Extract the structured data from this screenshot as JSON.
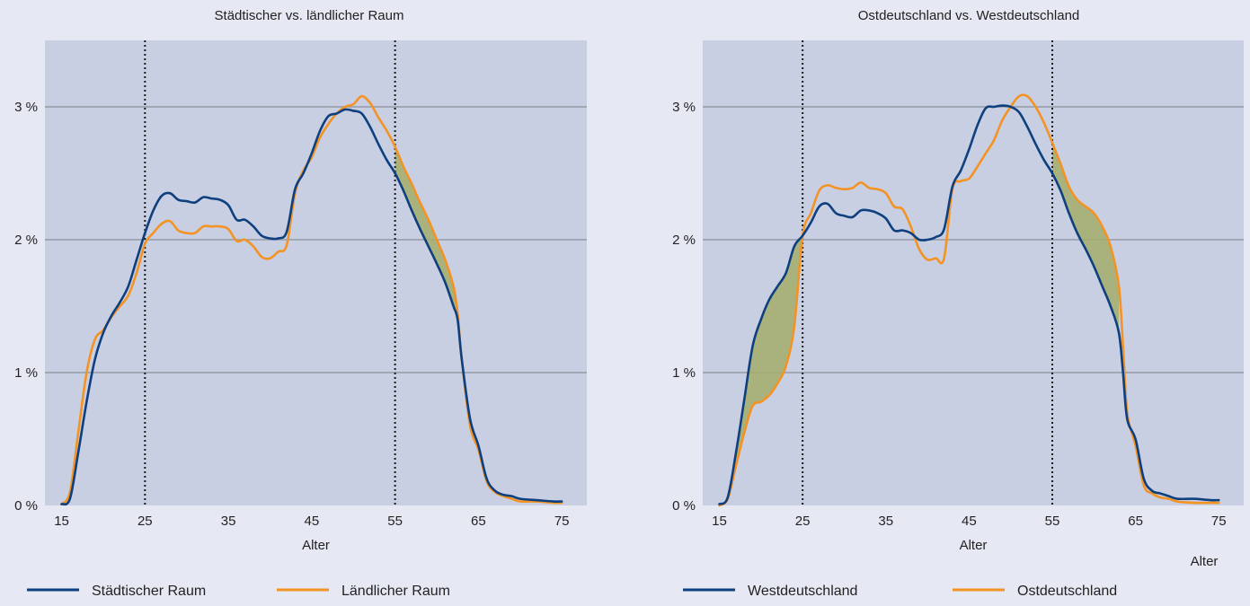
{
  "chart_data": [
    {
      "type": "line",
      "title": "Städtischer vs. ländlicher Raum",
      "xlabel": "Alter",
      "ylabel": "",
      "xlim": [
        13,
        78
      ],
      "ylim": [
        0,
        3.5
      ],
      "x_ticks": [
        15,
        25,
        35,
        45,
        55,
        65,
        75
      ],
      "x_tick_labels": [
        "15",
        "25",
        "35",
        "45",
        "55",
        "65",
        "75"
      ],
      "y_ticks": [
        0,
        1,
        2,
        3
      ],
      "y_tick_labels": [
        "0 %",
        "1 %",
        "2 %",
        "3 %"
      ],
      "grid": "horizontal",
      "reference_lines_x": [
        25,
        55
      ],
      "shaded_between_series": [
        [
          55,
          62.5
        ]
      ],
      "legend_position": "bottom",
      "series": [
        {
          "name": "Städtischer Raum",
          "color": "#0e3f7e",
          "points": [
            [
              15,
              0.01
            ],
            [
              16,
              0.05
            ],
            [
              17,
              0.4
            ],
            [
              18,
              0.78
            ],
            [
              19,
              1.1
            ],
            [
              20,
              1.3
            ],
            [
              21,
              1.43
            ],
            [
              22,
              1.53
            ],
            [
              23,
              1.65
            ],
            [
              24,
              1.85
            ],
            [
              25,
              2.05
            ],
            [
              26,
              2.22
            ],
            [
              27,
              2.33
            ],
            [
              28,
              2.35
            ],
            [
              29,
              2.3
            ],
            [
              30,
              2.29
            ],
            [
              31,
              2.28
            ],
            [
              32,
              2.32
            ],
            [
              33,
              2.31
            ],
            [
              34,
              2.3
            ],
            [
              35,
              2.26
            ],
            [
              36,
              2.15
            ],
            [
              37,
              2.15
            ],
            [
              38,
              2.1
            ],
            [
              39,
              2.03
            ],
            [
              40,
              2.01
            ],
            [
              41,
              2.01
            ],
            [
              42,
              2.06
            ],
            [
              43,
              2.38
            ],
            [
              44,
              2.5
            ],
            [
              45,
              2.65
            ],
            [
              46,
              2.82
            ],
            [
              47,
              2.93
            ],
            [
              48,
              2.95
            ],
            [
              49,
              2.98
            ],
            [
              50,
              2.97
            ],
            [
              51,
              2.95
            ],
            [
              52,
              2.85
            ],
            [
              53,
              2.72
            ],
            [
              54,
              2.6
            ],
            [
              55,
              2.5
            ],
            [
              56,
              2.37
            ],
            [
              57,
              2.22
            ],
            [
              58,
              2.08
            ],
            [
              59,
              1.95
            ],
            [
              60,
              1.82
            ],
            [
              61,
              1.68
            ],
            [
              62,
              1.5
            ],
            [
              62.5,
              1.4
            ],
            [
              63,
              1.1
            ],
            [
              64,
              0.65
            ],
            [
              65,
              0.45
            ],
            [
              66,
              0.2
            ],
            [
              67,
              0.11
            ],
            [
              68,
              0.08
            ],
            [
              69,
              0.07
            ],
            [
              70,
              0.05
            ],
            [
              72,
              0.04
            ],
            [
              74,
              0.03
            ],
            [
              75,
              0.03
            ]
          ]
        },
        {
          "name": "Ländlicher Raum",
          "color": "#f39323",
          "points": [
            [
              15,
              0.01
            ],
            [
              16,
              0.1
            ],
            [
              17,
              0.55
            ],
            [
              18,
              1.0
            ],
            [
              19,
              1.25
            ],
            [
              20,
              1.32
            ],
            [
              21,
              1.42
            ],
            [
              22,
              1.5
            ],
            [
              23,
              1.58
            ],
            [
              24,
              1.75
            ],
            [
              25,
              1.97
            ],
            [
              26,
              2.05
            ],
            [
              27,
              2.12
            ],
            [
              28,
              2.14
            ],
            [
              29,
              2.07
            ],
            [
              30,
              2.05
            ],
            [
              31,
              2.05
            ],
            [
              32,
              2.1
            ],
            [
              33,
              2.1
            ],
            [
              34,
              2.1
            ],
            [
              35,
              2.08
            ],
            [
              36,
              1.99
            ],
            [
              37,
              2.0
            ],
            [
              38,
              1.95
            ],
            [
              39,
              1.87
            ],
            [
              40,
              1.86
            ],
            [
              41,
              1.91
            ],
            [
              42,
              1.96
            ],
            [
              43,
              2.35
            ],
            [
              44,
              2.52
            ],
            [
              45,
              2.62
            ],
            [
              46,
              2.77
            ],
            [
              47,
              2.87
            ],
            [
              48,
              2.95
            ],
            [
              49,
              3.0
            ],
            [
              50,
              3.02
            ],
            [
              51,
              3.08
            ],
            [
              52,
              3.03
            ],
            [
              53,
              2.92
            ],
            [
              54,
              2.82
            ],
            [
              55,
              2.7
            ],
            [
              56,
              2.55
            ],
            [
              57,
              2.42
            ],
            [
              58,
              2.28
            ],
            [
              59,
              2.15
            ],
            [
              60,
              2.0
            ],
            [
              61,
              1.85
            ],
            [
              62,
              1.65
            ],
            [
              62.5,
              1.45
            ],
            [
              63,
              1.1
            ],
            [
              64,
              0.6
            ],
            [
              65,
              0.42
            ],
            [
              66,
              0.18
            ],
            [
              67,
              0.1
            ],
            [
              68,
              0.07
            ],
            [
              69,
              0.05
            ],
            [
              70,
              0.03
            ],
            [
              72,
              0.03
            ],
            [
              74,
              0.02
            ],
            [
              75,
              0.02
            ]
          ]
        }
      ]
    },
    {
      "type": "line",
      "title": "Ostdeutschland vs. Westdeutschland",
      "xlabel": "Alter",
      "ylabel": "",
      "xlim": [
        13,
        78
      ],
      "ylim": [
        0,
        3.5
      ],
      "x_ticks": [
        15,
        25,
        35,
        45,
        55,
        65,
        75
      ],
      "x_tick_labels": [
        "15",
        "25",
        "35",
        "45",
        "55",
        "65",
        "75"
      ],
      "y_ticks": [
        0,
        1,
        2,
        3
      ],
      "y_tick_labels": [
        "0 %",
        "1 %",
        "2 %",
        "3 %"
      ],
      "grid": "horizontal",
      "reference_lines_x": [
        25,
        55
      ],
      "shaded_between_series": [
        [
          16,
          25
        ],
        [
          55,
          63
        ]
      ],
      "legend_position": "bottom",
      "series": [
        {
          "name": "Westdeutschland",
          "color": "#0e3f7e",
          "points": [
            [
              15,
              0.01
            ],
            [
              16,
              0.06
            ],
            [
              17,
              0.4
            ],
            [
              18,
              0.8
            ],
            [
              19,
              1.2
            ],
            [
              20,
              1.4
            ],
            [
              21,
              1.55
            ],
            [
              22,
              1.65
            ],
            [
              23,
              1.75
            ],
            [
              24,
              1.95
            ],
            [
              25,
              2.03
            ],
            [
              26,
              2.13
            ],
            [
              27,
              2.25
            ],
            [
              28,
              2.27
            ],
            [
              29,
              2.2
            ],
            [
              30,
              2.18
            ],
            [
              31,
              2.17
            ],
            [
              32,
              2.22
            ],
            [
              33,
              2.22
            ],
            [
              34,
              2.2
            ],
            [
              35,
              2.16
            ],
            [
              36,
              2.07
            ],
            [
              37,
              2.07
            ],
            [
              38,
              2.05
            ],
            [
              39,
              2.0
            ],
            [
              40,
              2.0
            ],
            [
              41,
              2.02
            ],
            [
              42,
              2.08
            ],
            [
              43,
              2.4
            ],
            [
              44,
              2.52
            ],
            [
              45,
              2.68
            ],
            [
              46,
              2.86
            ],
            [
              47,
              2.99
            ],
            [
              48,
              3.0
            ],
            [
              49,
              3.01
            ],
            [
              50,
              3.0
            ],
            [
              51,
              2.96
            ],
            [
              52,
              2.85
            ],
            [
              53,
              2.72
            ],
            [
              54,
              2.6
            ],
            [
              55,
              2.5
            ],
            [
              56,
              2.37
            ],
            [
              57,
              2.2
            ],
            [
              58,
              2.05
            ],
            [
              59,
              1.93
            ],
            [
              60,
              1.8
            ],
            [
              61,
              1.65
            ],
            [
              62,
              1.5
            ],
            [
              63,
              1.3
            ],
            [
              63.5,
              1.0
            ],
            [
              64,
              0.65
            ],
            [
              65,
              0.5
            ],
            [
              66,
              0.2
            ],
            [
              67,
              0.11
            ],
            [
              68,
              0.09
            ],
            [
              69,
              0.07
            ],
            [
              70,
              0.05
            ],
            [
              72,
              0.05
            ],
            [
              74,
              0.04
            ],
            [
              75,
              0.04
            ]
          ]
        },
        {
          "name": "Ostdeutschland",
          "color": "#f39323",
          "points": [
            [
              15,
              0.0
            ],
            [
              16,
              0.05
            ],
            [
              17,
              0.3
            ],
            [
              18,
              0.55
            ],
            [
              19,
              0.75
            ],
            [
              20,
              0.78
            ],
            [
              21,
              0.83
            ],
            [
              22,
              0.92
            ],
            [
              23,
              1.05
            ],
            [
              24,
              1.35
            ],
            [
              25,
              2.03
            ],
            [
              26,
              2.2
            ],
            [
              27,
              2.37
            ],
            [
              28,
              2.41
            ],
            [
              29,
              2.39
            ],
            [
              30,
              2.38
            ],
            [
              31,
              2.39
            ],
            [
              32,
              2.43
            ],
            [
              33,
              2.39
            ],
            [
              34,
              2.38
            ],
            [
              35,
              2.35
            ],
            [
              36,
              2.25
            ],
            [
              37,
              2.23
            ],
            [
              38,
              2.1
            ],
            [
              39,
              1.93
            ],
            [
              40,
              1.85
            ],
            [
              41,
              1.86
            ],
            [
              42,
              1.86
            ],
            [
              43,
              2.38
            ],
            [
              44,
              2.44
            ],
            [
              45,
              2.46
            ],
            [
              46,
              2.55
            ],
            [
              47,
              2.65
            ],
            [
              48,
              2.75
            ],
            [
              49,
              2.9
            ],
            [
              50,
              3.0
            ],
            [
              51,
              3.08
            ],
            [
              52,
              3.08
            ],
            [
              53,
              3.0
            ],
            [
              54,
              2.88
            ],
            [
              55,
              2.73
            ],
            [
              56,
              2.57
            ],
            [
              57,
              2.4
            ],
            [
              58,
              2.3
            ],
            [
              59,
              2.25
            ],
            [
              60,
              2.2
            ],
            [
              61,
              2.1
            ],
            [
              62,
              1.95
            ],
            [
              63,
              1.65
            ],
            [
              63.5,
              1.2
            ],
            [
              64,
              0.7
            ],
            [
              65,
              0.45
            ],
            [
              66,
              0.15
            ],
            [
              67,
              0.09
            ],
            [
              68,
              0.06
            ],
            [
              69,
              0.05
            ],
            [
              70,
              0.03
            ],
            [
              72,
              0.02
            ],
            [
              74,
              0.02
            ],
            [
              75,
              0.02
            ]
          ]
        }
      ]
    }
  ],
  "extra_labels": {
    "right_chart_corner_label": "Alter"
  }
}
